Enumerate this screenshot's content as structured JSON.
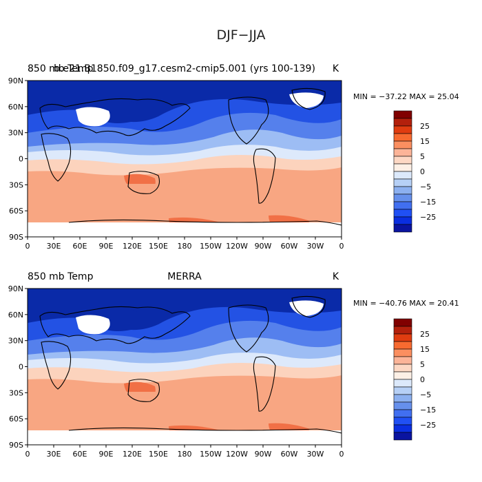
{
  "figure_title": "DJF−JJA",
  "panels": [
    {
      "left_title": "850 mb Temp",
      "center_title": "b.e21.B1850.f09_g17.cesm2-cmip5.001 (yrs 100-139)",
      "units": "K",
      "min_max": "MIN = −37.22  MAX =  25.04",
      "min": -37.22,
      "max": 25.04
    },
    {
      "left_title": "850 mb Temp",
      "center_title": "MERRA",
      "units": "K",
      "min_max": "MIN = −40.76  MAX =  20.41",
      "min": -40.76,
      "max": 20.41
    }
  ],
  "lat_labels": [
    "90N",
    "60N",
    "30N",
    "0",
    "30S",
    "60S",
    "90S"
  ],
  "lon_labels": [
    "0",
    "30E",
    "60E",
    "90E",
    "120E",
    "150E",
    "180",
    "150W",
    "120W",
    "90W",
    "60W",
    "30W",
    "0"
  ],
  "colorbar": {
    "labels": [
      "25",
      "15",
      "5",
      "0",
      "−5",
      "−15",
      "−25"
    ],
    "colors": [
      "#800000",
      "#b3200c",
      "#e03c10",
      "#f76a30",
      "#fb8f60",
      "#fcb498",
      "#fdd8c4",
      "#fdf0e6",
      "#dce9fb",
      "#b6d0f6",
      "#8cb0f0",
      "#6690ec",
      "#416ff0",
      "#2050f4",
      "#0a2ee0",
      "#0a14a0"
    ]
  },
  "colors": {
    "polar_cold": "#0a2aa8",
    "cold": "#2352e4",
    "mid_cold": "#5580ec",
    "cool": "#9dbdf4",
    "neutral": "#dde9fb",
    "warm_light": "#fcd3bd",
    "warm": "#f8a682",
    "hot": "#f17046",
    "missing": "#ffffff",
    "coast": "#000000"
  }
}
